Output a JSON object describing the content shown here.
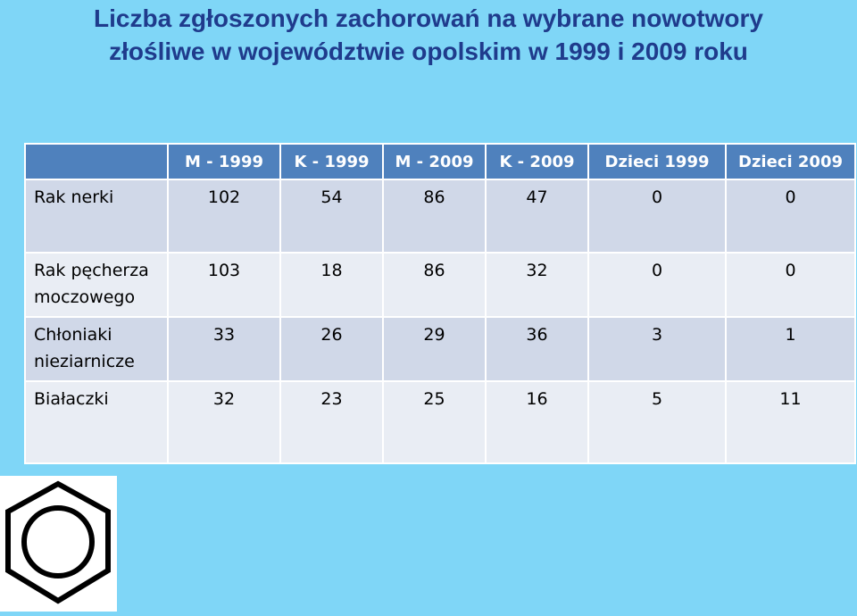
{
  "title": {
    "line1": "Liczba zgłoszonych zachorowań na wybrane nowotwory",
    "line2": "złośliwe w województwie opolskim w 1999 i 2009 roku"
  },
  "table": {
    "headers": [
      "",
      "M - 1999",
      "K - 1999",
      "M - 2009",
      "K - 2009",
      "Dzieci 1999",
      "Dzieci 2009"
    ],
    "rows": [
      {
        "label": "Rak nerki",
        "values": [
          "102",
          "54",
          "86",
          "47",
          "0",
          "0"
        ]
      },
      {
        "label": "Rak pęcherza moczowego",
        "values": [
          "103",
          "18",
          "86",
          "32",
          "0",
          "0"
        ]
      },
      {
        "label": "Chłoniaki nieziarnicze",
        "values": [
          "33",
          "26",
          "29",
          "36",
          "3",
          "1"
        ]
      },
      {
        "label": "Białaczki",
        "values": [
          "32",
          "23",
          "25",
          "16",
          "5",
          "11"
        ]
      }
    ]
  },
  "colors": {
    "background": "#7fd6f7",
    "title": "#1f3b8c",
    "header": "#4f81bd",
    "row_odd": "#d0d8e8",
    "row_even": "#e9edf4"
  },
  "image": {
    "icon": "benzene-ring-icon"
  }
}
